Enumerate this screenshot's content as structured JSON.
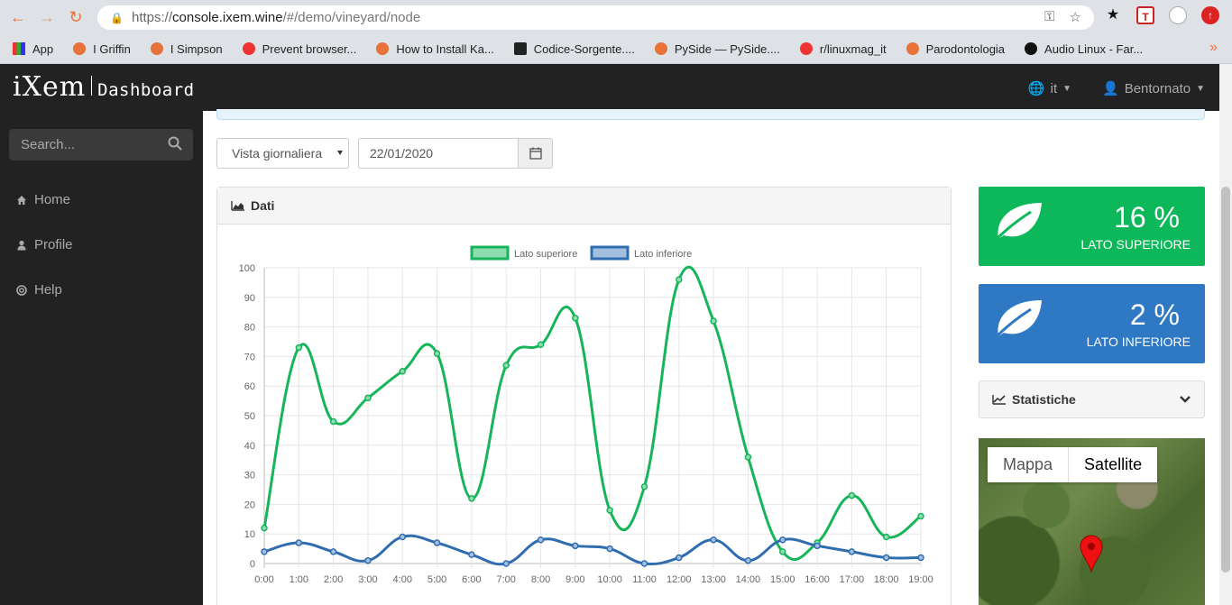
{
  "browser": {
    "url_scheme": "https://",
    "url_host": "console.ixem.wine",
    "url_path": "/#/demo/vineyard/node",
    "bookmarks": [
      "App",
      "I Griffin",
      "I Simpson",
      "Prevent browser...",
      "How to Install Ka...",
      "Codice-Sorgente....",
      "PySide — PySide....",
      "r/linuxmag_it",
      "Parodontologia",
      "Audio Linux - Far..."
    ],
    "more": "»"
  },
  "header": {
    "logo_main": "iXem",
    "logo_sub": "Dashboard",
    "language": "it",
    "user": "Bentornato"
  },
  "sidebar": {
    "search_placeholder": "Search...",
    "items": [
      {
        "label": "Home",
        "icon": "home-icon"
      },
      {
        "label": "Profile",
        "icon": "user-icon"
      },
      {
        "label": "Help",
        "icon": "lifebuoy-icon"
      }
    ]
  },
  "filters": {
    "view": "Vista giornaliera",
    "date": "22/01/2020"
  },
  "panel": {
    "title": "Dati"
  },
  "chart_data": {
    "type": "line",
    "title": "",
    "xlabel": "",
    "ylabel": "",
    "ylim": [
      0,
      100
    ],
    "yticks": [
      0,
      10,
      20,
      30,
      40,
      50,
      60,
      70,
      80,
      90,
      100
    ],
    "grid": true,
    "legend": "top",
    "categories": [
      "0:00",
      "1:00",
      "2:00",
      "3:00",
      "4:00",
      "5:00",
      "6:00",
      "7:00",
      "8:00",
      "9:00",
      "10:00",
      "11:00",
      "12:00",
      "13:00",
      "14:00",
      "15:00",
      "16:00",
      "17:00",
      "18:00",
      "19:00"
    ],
    "series": [
      {
        "name": "Lato superiore",
        "color": "#17b55a",
        "fill": "#8fdcae",
        "values": [
          12,
          73,
          48,
          56,
          65,
          71,
          22,
          67,
          74,
          83,
          18,
          26,
          96,
          82,
          36,
          4,
          7,
          23,
          9,
          16
        ]
      },
      {
        "name": "Lato inferiore",
        "color": "#2f6db0",
        "fill": "#a4c0e0",
        "values": [
          4,
          7,
          4,
          1,
          9,
          7,
          3,
          0,
          8,
          6,
          5,
          0,
          2,
          8,
          1,
          8,
          6,
          4,
          2,
          2
        ]
      }
    ]
  },
  "stats": {
    "top": {
      "value": "16 %",
      "label": "Lato superiore",
      "color": "#0db85a"
    },
    "bottom": {
      "value": "2 %",
      "label": "Lato inferiore",
      "color": "#2f78c4"
    }
  },
  "statistics_panel": {
    "title": "Statistiche"
  },
  "map": {
    "tab_map": "Mappa",
    "tab_satellite": "Satellite"
  }
}
